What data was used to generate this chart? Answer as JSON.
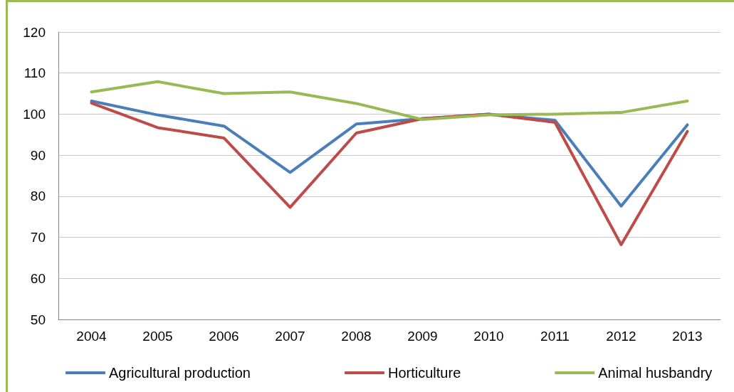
{
  "chart_data": {
    "type": "line",
    "categories": [
      "2004",
      "2005",
      "2006",
      "2007",
      "2008",
      "2009",
      "2010",
      "2011",
      "2012",
      "2013"
    ],
    "series": [
      {
        "name": "Agricultural production",
        "color": "#4a7ebb",
        "values": [
          103.2,
          99.8,
          97.1,
          85.8,
          97.6,
          98.9,
          100,
          98.5,
          77.6,
          97.4
        ]
      },
      {
        "name": "Horticulture",
        "color": "#be4b48",
        "values": [
          102.7,
          96.7,
          94.2,
          77.3,
          95.4,
          98.9,
          100,
          98,
          68.2,
          95.8
        ]
      },
      {
        "name": "Animal husbandry",
        "color": "#98b954",
        "values": [
          105.4,
          107.9,
          105,
          105.4,
          102.6,
          98.7,
          99.8,
          100,
          100.4,
          103.2
        ]
      }
    ],
    "ylim": [
      50,
      120
    ],
    "yticks": [
      50,
      60,
      70,
      80,
      90,
      100,
      110,
      120
    ],
    "grid": "y",
    "legend": "bottom",
    "marker": "none",
    "line_style": "solid"
  }
}
